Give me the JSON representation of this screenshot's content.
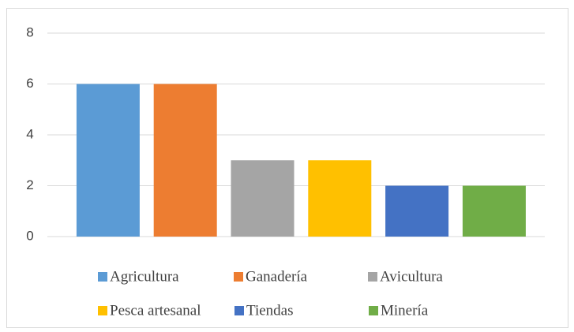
{
  "chart_data": {
    "type": "bar",
    "categories": [
      "Agricultura",
      "Ganadería",
      "Avicultura",
      "Pesca artesanal",
      "Tiendas",
      "Minería"
    ],
    "values": [
      6,
      6,
      3,
      3,
      2,
      2
    ],
    "colors": [
      "#5b9bd5",
      "#ed7d31",
      "#a5a5a5",
      "#ffc000",
      "#4472c4",
      "#70ad47"
    ],
    "ylim": [
      0,
      8
    ],
    "yticks": [
      0,
      2,
      4,
      6,
      8
    ],
    "grid": true,
    "legend": "bottom"
  }
}
